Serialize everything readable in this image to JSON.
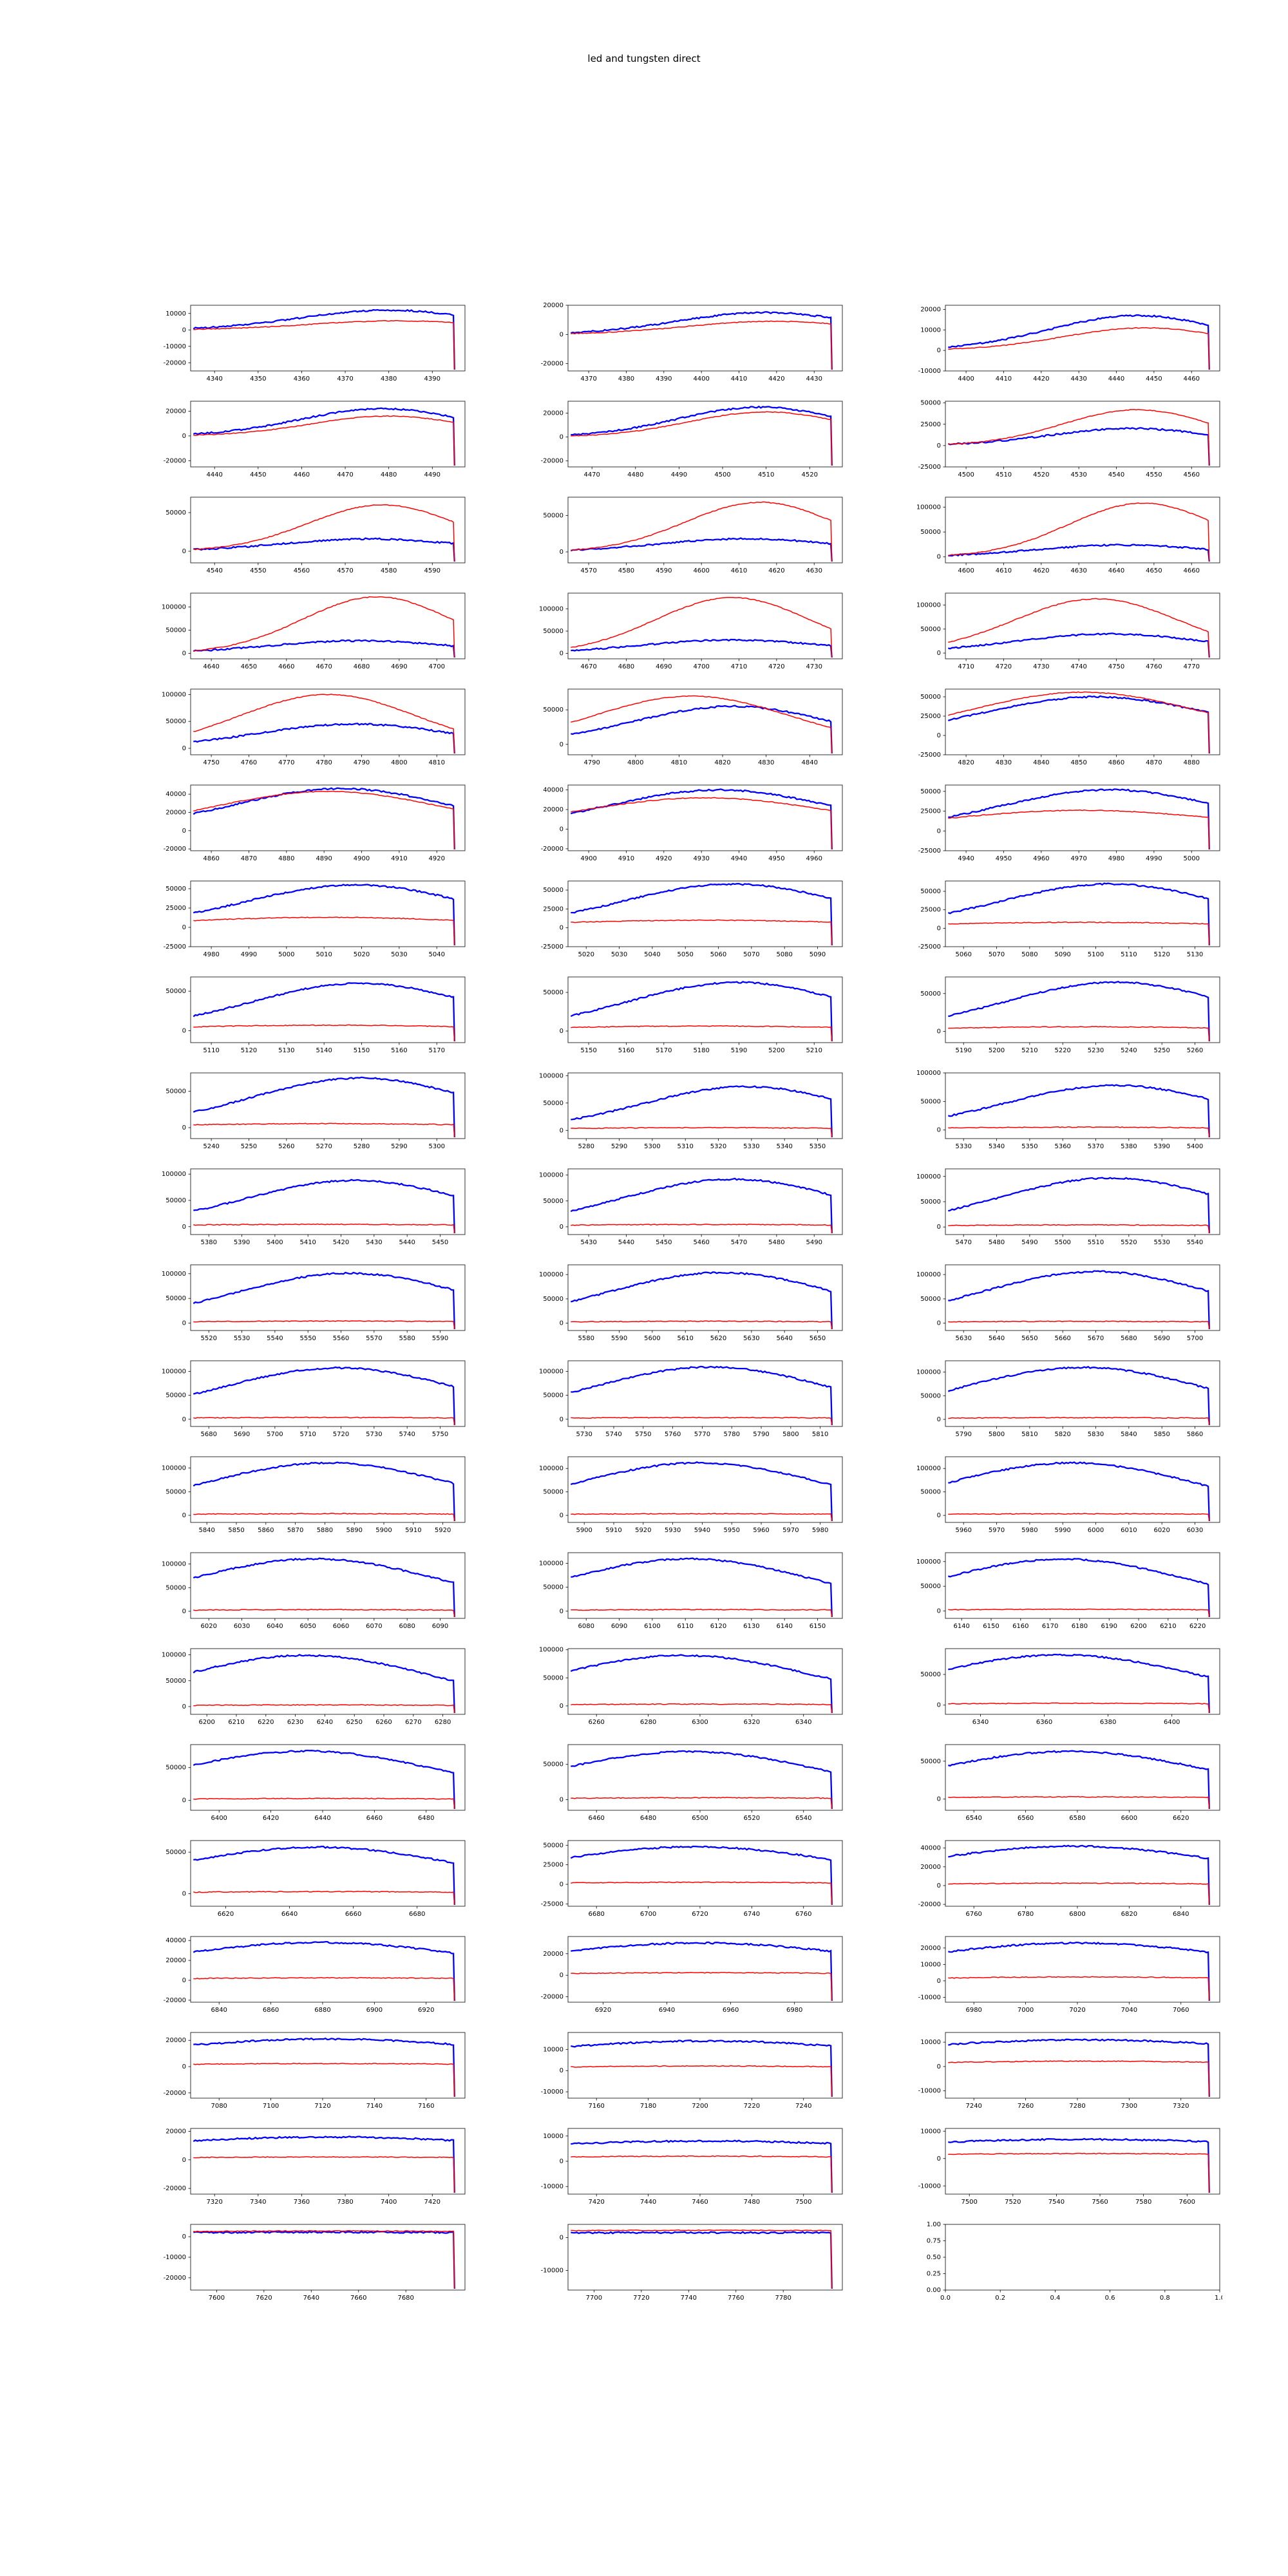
{
  "chart_data": {
    "type": "line",
    "title": "led and tungsten direct",
    "layout": {
      "rows": 21,
      "cols": 3,
      "legend": "none",
      "grid": "off"
    },
    "series_names": [
      "led",
      "tungsten"
    ],
    "colors": {
      "led": "#0000ff",
      "tungsten": "#ff0000",
      "axes": "#000000"
    },
    "subplots": [
      {
        "x0": 4340,
        "x1": 4390,
        "xs": 10,
        "y0": -25000,
        "y1": 15000,
        "ys": 10000,
        "b": [
          12000,
          0.72,
          0.32
        ],
        "r": [
          5500,
          0.75,
          0.32
        ]
      },
      {
        "x0": 4370,
        "x1": 4430,
        "xs": 10,
        "y0": -25000,
        "y1": 20000,
        "ys": 20000,
        "b": [
          15000,
          0.72,
          0.32
        ],
        "r": [
          9000,
          0.75,
          0.32
        ]
      },
      {
        "x0": 4400,
        "x1": 4460,
        "xs": 10,
        "y0": -10000,
        "y1": 22000,
        "ys": 10000,
        "b": [
          17000,
          0.7,
          0.32
        ],
        "r": [
          11000,
          0.73,
          0.3
        ]
      },
      {
        "x0": 4440,
        "x1": 4490,
        "xs": 10,
        "y0": -25000,
        "y1": 28000,
        "ys": 20000,
        "b": [
          22000,
          0.7,
          0.3
        ],
        "r": [
          16000,
          0.72,
          0.28
        ]
      },
      {
        "x0": 4470,
        "x1": 4520,
        "xs": 10,
        "y0": -25000,
        "y1": 30000,
        "ys": 20000,
        "b": [
          25000,
          0.7,
          0.3
        ],
        "r": [
          21000,
          0.72,
          0.28
        ]
      },
      {
        "x0": 4500,
        "x1": 4560,
        "xs": 10,
        "y0": -25000,
        "y1": 52000,
        "ys": 25000,
        "b": [
          20000,
          0.68,
          0.3
        ],
        "r": [
          42000,
          0.7,
          0.27
        ]
      },
      {
        "x0": 4540,
        "x1": 4590,
        "xs": 10,
        "y0": -15000,
        "y1": 70000,
        "ys": 50000,
        "b": [
          16000,
          0.65,
          0.32
        ],
        "r": [
          60000,
          0.7,
          0.27
        ]
      },
      {
        "x0": 4570,
        "x1": 4630,
        "xs": 10,
        "y0": -15000,
        "y1": 75000,
        "ys": 50000,
        "b": [
          18000,
          0.65,
          0.32
        ],
        "r": [
          68000,
          0.7,
          0.27
        ]
      },
      {
        "x0": 4600,
        "x1": 4660,
        "xs": 10,
        "y0": -12000,
        "y1": 120000,
        "ys": 50000,
        "b": [
          24000,
          0.65,
          0.32
        ],
        "r": [
          108000,
          0.72,
          0.27
        ]
      },
      {
        "x0": 4640,
        "x1": 4700,
        "xs": 10,
        "y0": -12000,
        "y1": 130000,
        "ys": 50000,
        "b": [
          27000,
          0.62,
          0.33
        ],
        "r": [
          122000,
          0.68,
          0.27
        ]
      },
      {
        "x0": 4670,
        "x1": 4730,
        "xs": 10,
        "y0": -12000,
        "y1": 135000,
        "ys": 50000,
        "b": [
          30000,
          0.6,
          0.34
        ],
        "r": [
          125000,
          0.6,
          0.28
        ]
      },
      {
        "x0": 4710,
        "x1": 4770,
        "xs": 10,
        "y0": -12000,
        "y1": 125000,
        "ys": 50000,
        "b": [
          40000,
          0.6,
          0.35
        ],
        "r": [
          113000,
          0.55,
          0.3
        ]
      },
      {
        "x0": 4750,
        "x1": 4810,
        "xs": 10,
        "y0": -12000,
        "y1": 110000,
        "ys": 50000,
        "b": [
          45000,
          0.6,
          0.36
        ],
        "r": [
          100000,
          0.5,
          0.32
        ]
      },
      {
        "x0": 4790,
        "x1": 4840,
        "xs": 10,
        "y0": -15000,
        "y1": 80000,
        "ys": 50000,
        "b": [
          55000,
          0.6,
          0.36
        ],
        "r": [
          70000,
          0.45,
          0.35
        ]
      },
      {
        "x0": 4820,
        "x1": 4880,
        "xs": 10,
        "y0": -25000,
        "y1": 60000,
        "ys": 25000,
        "b": [
          50000,
          0.55,
          0.4
        ],
        "r": [
          56000,
          0.5,
          0.4
        ]
      },
      {
        "x0": 4860,
        "x1": 4920,
        "xs": 10,
        "y0": -22000,
        "y1": 50000,
        "ys": 20000,
        "b": [
          46000,
          0.55,
          0.4
        ],
        "r": [
          43000,
          0.5,
          0.42
        ]
      },
      {
        "x0": 4900,
        "x1": 4960,
        "xs": 10,
        "y0": -22000,
        "y1": 45000,
        "ys": 20000,
        "b": [
          40000,
          0.55,
          0.4
        ],
        "r": [
          32000,
          0.5,
          0.45
        ]
      },
      {
        "x0": 4940,
        "x1": 5000,
        "xs": 10,
        "y0": -25000,
        "y1": 58000,
        "ys": 25000,
        "b": [
          52000,
          0.6,
          0.4
        ],
        "r": [
          26000,
          0.5,
          0.5
        ]
      },
      {
        "x0": 4980,
        "x1": 5040,
        "xs": 10,
        "y0": -25000,
        "y1": 60000,
        "ys": 25000,
        "b": [
          55000,
          0.6,
          0.4
        ],
        "r": [
          13000,
          0.5,
          0.55
        ]
      },
      {
        "x0": 5020,
        "x1": 5090,
        "xs": 10,
        "y0": -25000,
        "y1": 62000,
        "ys": 25000,
        "b": [
          58000,
          0.6,
          0.4
        ],
        "r": [
          10000,
          0.5,
          0.6
        ]
      },
      {
        "x0": 5060,
        "x1": 5130,
        "xs": 10,
        "y0": -25000,
        "y1": 64000,
        "ys": 25000,
        "b": [
          60000,
          0.6,
          0.4
        ],
        "r": [
          8000,
          0.5,
          0.6
        ]
      },
      {
        "x0": 5110,
        "x1": 5170,
        "xs": 10,
        "y0": -15000,
        "y1": 68000,
        "ys": 50000,
        "b": [
          60000,
          0.62,
          0.4
        ],
        "r": [
          7000,
          0.5,
          0.6
        ]
      },
      {
        "x0": 5150,
        "x1": 5210,
        "xs": 10,
        "y0": -15000,
        "y1": 70000,
        "ys": 50000,
        "b": [
          63000,
          0.62,
          0.4
        ],
        "r": [
          6500,
          0.5,
          0.6
        ]
      },
      {
        "x0": 5190,
        "x1": 5260,
        "xs": 10,
        "y0": -15000,
        "y1": 72000,
        "ys": 50000,
        "b": [
          65000,
          0.62,
          0.4
        ],
        "r": [
          6000,
          0.5,
          0.6
        ]
      },
      {
        "x0": 5240,
        "x1": 5300,
        "xs": 10,
        "y0": -15000,
        "y1": 75000,
        "ys": 50000,
        "b": [
          68000,
          0.62,
          0.4
        ],
        "r": [
          5500,
          0.5,
          0.6
        ]
      },
      {
        "x0": 5280,
        "x1": 5350,
        "xs": 10,
        "y0": -15000,
        "y1": 105000,
        "ys": 50000,
        "b": [
          80000,
          0.65,
          0.38
        ],
        "r": [
          5000,
          0.5,
          0.6
        ]
      },
      {
        "x0": 5330,
        "x1": 5400,
        "xs": 10,
        "y0": -15000,
        "y1": 100000,
        "ys": 50000,
        "b": [
          78000,
          0.62,
          0.4
        ],
        "r": [
          5000,
          0.5,
          0.6
        ]
      },
      {
        "x0": 5380,
        "x1": 5450,
        "xs": 10,
        "y0": -15000,
        "y1": 110000,
        "ys": 50000,
        "b": [
          88000,
          0.6,
          0.4
        ],
        "r": [
          4500,
          0.5,
          0.6
        ]
      },
      {
        "x0": 5430,
        "x1": 5490,
        "xs": 10,
        "y0": -15000,
        "y1": 112000,
        "ys": 50000,
        "b": [
          92000,
          0.6,
          0.4
        ],
        "r": [
          4500,
          0.5,
          0.6
        ]
      },
      {
        "x0": 5470,
        "x1": 5540,
        "xs": 10,
        "y0": -15000,
        "y1": 115000,
        "ys": 50000,
        "b": [
          97000,
          0.6,
          0.4
        ],
        "r": [
          4000,
          0.5,
          0.6
        ]
      },
      {
        "x0": 5520,
        "x1": 5590,
        "xs": 10,
        "y0": -15000,
        "y1": 118000,
        "ys": 50000,
        "b": [
          101000,
          0.58,
          0.42
        ],
        "r": [
          4000,
          0.5,
          0.6
        ]
      },
      {
        "x0": 5580,
        "x1": 5650,
        "xs": 10,
        "y0": -15000,
        "y1": 120000,
        "ys": 50000,
        "b": [
          104000,
          0.56,
          0.42
        ],
        "r": [
          4000,
          0.5,
          0.6
        ]
      },
      {
        "x0": 5630,
        "x1": 5700,
        "xs": 10,
        "y0": -15000,
        "y1": 120000,
        "ys": 50000,
        "b": [
          106000,
          0.55,
          0.42
        ],
        "r": [
          3800,
          0.5,
          0.6
        ]
      },
      {
        "x0": 5680,
        "x1": 5750,
        "xs": 10,
        "y0": -15000,
        "y1": 122000,
        "ys": 50000,
        "b": [
          107000,
          0.54,
          0.44
        ],
        "r": [
          3800,
          0.5,
          0.6
        ]
      },
      {
        "x0": 5730,
        "x1": 5810,
        "xs": 10,
        "y0": -15000,
        "y1": 122000,
        "ys": 50000,
        "b": [
          109000,
          0.52,
          0.44
        ],
        "r": [
          3600,
          0.5,
          0.6
        ]
      },
      {
        "x0": 5790,
        "x1": 5860,
        "xs": 10,
        "y0": -15000,
        "y1": 124000,
        "ys": 50000,
        "b": [
          110000,
          0.5,
          0.45
        ],
        "r": [
          3600,
          0.5,
          0.6
        ]
      },
      {
        "x0": 5840,
        "x1": 5920,
        "xs": 10,
        "y0": -15000,
        "y1": 124000,
        "ys": 50000,
        "b": [
          111000,
          0.5,
          0.46
        ],
        "r": [
          3500,
          0.5,
          0.6
        ]
      },
      {
        "x0": 5900,
        "x1": 5980,
        "xs": 10,
        "y0": -15000,
        "y1": 125000,
        "ys": 50000,
        "b": [
          112000,
          0.48,
          0.46
        ],
        "r": [
          3500,
          0.5,
          0.6
        ]
      },
      {
        "x0": 5960,
        "x1": 6030,
        "xs": 10,
        "y0": -15000,
        "y1": 125000,
        "ys": 50000,
        "b": [
          112000,
          0.46,
          0.46
        ],
        "r": [
          3400,
          0.5,
          0.6
        ]
      },
      {
        "x0": 6020,
        "x1": 6090,
        "xs": 10,
        "y0": -15000,
        "y1": 124000,
        "ys": 50000,
        "b": [
          111000,
          0.45,
          0.46
        ],
        "r": [
          3400,
          0.5,
          0.6
        ]
      },
      {
        "x0": 6080,
        "x1": 6150,
        "xs": 10,
        "y0": -15000,
        "y1": 122000,
        "ys": 50000,
        "b": [
          109000,
          0.44,
          0.46
        ],
        "r": [
          3300,
          0.5,
          0.6
        ]
      },
      {
        "x0": 6140,
        "x1": 6220,
        "xs": 10,
        "y0": -15000,
        "y1": 118000,
        "ys": 50000,
        "b": [
          105000,
          0.43,
          0.46
        ],
        "r": [
          3300,
          0.5,
          0.6
        ]
      },
      {
        "x0": 6200,
        "x1": 6280,
        "xs": 10,
        "y0": -15000,
        "y1": 112000,
        "ys": 50000,
        "b": [
          99000,
          0.42,
          0.46
        ],
        "r": [
          3200,
          0.5,
          0.6
        ]
      },
      {
        "x0": 6260,
        "x1": 6340,
        "xs": 20,
        "y0": -15000,
        "y1": 102000,
        "ys": 50000,
        "b": [
          90000,
          0.42,
          0.48
        ],
        "r": [
          3200,
          0.5,
          0.6
        ]
      },
      {
        "x0": 6340,
        "x1": 6400,
        "xs": 20,
        "y0": -15000,
        "y1": 92000,
        "ys": 50000,
        "b": [
          82000,
          0.42,
          0.5
        ],
        "r": [
          3000,
          0.5,
          0.6
        ]
      },
      {
        "x0": 6400,
        "x1": 6480,
        "xs": 20,
        "y0": -15000,
        "y1": 85000,
        "ys": 50000,
        "b": [
          75000,
          0.42,
          0.5
        ],
        "r": [
          3000,
          0.5,
          0.6
        ]
      },
      {
        "x0": 6460,
        "x1": 6540,
        "xs": 20,
        "y0": -15000,
        "y1": 78000,
        "ys": 50000,
        "b": [
          68000,
          0.44,
          0.5
        ],
        "r": [
          2800,
          0.5,
          0.6
        ]
      },
      {
        "x0": 6540,
        "x1": 6620,
        "xs": 20,
        "y0": -15000,
        "y1": 72000,
        "ys": 50000,
        "b": [
          63000,
          0.45,
          0.52
        ],
        "r": [
          2800,
          0.5,
          0.6
        ]
      },
      {
        "x0": 6620,
        "x1": 6680,
        "xs": 20,
        "y0": -15000,
        "y1": 64000,
        "ys": 50000,
        "b": [
          56000,
          0.46,
          0.55
        ],
        "r": [
          2600,
          0.5,
          0.6
        ]
      },
      {
        "x0": 6680,
        "x1": 6760,
        "xs": 20,
        "y0": -28000,
        "y1": 56000,
        "ys": 25000,
        "b": [
          48000,
          0.46,
          0.55
        ],
        "r": [
          2600,
          0.5,
          0.6
        ]
      },
      {
        "x0": 6760,
        "x1": 6840,
        "xs": 20,
        "y0": -22000,
        "y1": 48000,
        "ys": 20000,
        "b": [
          42000,
          0.46,
          0.58
        ],
        "r": [
          2500,
          0.5,
          0.6
        ]
      },
      {
        "x0": 6840,
        "x1": 6920,
        "xs": 20,
        "y0": -22000,
        "y1": 44000,
        "ys": 20000,
        "b": [
          38000,
          0.47,
          0.6
        ],
        "r": [
          2500,
          0.5,
          0.6
        ]
      },
      {
        "x0": 6920,
        "x1": 6980,
        "xs": 20,
        "y0": -25000,
        "y1": 36000,
        "ys": 20000,
        "b": [
          30000,
          0.48,
          0.62
        ],
        "r": [
          2400,
          0.5,
          0.6
        ]
      },
      {
        "x0": 6980,
        "x1": 7060,
        "xs": 20,
        "y0": -13000,
        "y1": 27000,
        "ys": 10000,
        "b": [
          23000,
          0.48,
          0.65
        ],
        "r": [
          2400,
          0.5,
          0.6
        ]
      },
      {
        "x0": 7080,
        "x1": 7160,
        "xs": 20,
        "y0": -24000,
        "y1": 26000,
        "ys": 20000,
        "b": [
          21000,
          0.5,
          0.7
        ],
        "r": [
          2300,
          0.5,
          0.7
        ]
      },
      {
        "x0": 7160,
        "x1": 7240,
        "xs": 20,
        "y0": -13000,
        "y1": 18000,
        "ys": 10000,
        "b": [
          14000,
          0.5,
          0.75
        ],
        "r": [
          2200,
          0.5,
          0.7
        ]
      },
      {
        "x0": 7240,
        "x1": 7320,
        "xs": 20,
        "y0": -13000,
        "y1": 14000,
        "ys": 10000,
        "b": [
          11000,
          0.5,
          0.8
        ],
        "r": [
          2200,
          0.5,
          0.7
        ]
      },
      {
        "x0": 7320,
        "x1": 7420,
        "xs": 20,
        "y0": -24000,
        "y1": 22000,
        "ys": 20000,
        "b": [
          16000,
          0.5,
          0.8
        ],
        "r": [
          2000,
          0.5,
          0.8
        ]
      },
      {
        "x0": 7420,
        "x1": 7500,
        "xs": 20,
        "y0": -13000,
        "y1": 13000,
        "ys": 10000,
        "b": [
          8000,
          0.5,
          0.9
        ],
        "r": [
          2000,
          0.5,
          0.9
        ]
      },
      {
        "x0": 7500,
        "x1": 7600,
        "xs": 20,
        "y0": -13000,
        "y1": 11000,
        "ys": 10000,
        "b": [
          7000,
          0.5,
          0.9
        ],
        "r": [
          1800,
          0.5,
          0.9
        ]
      },
      {
        "x0": 7600,
        "x1": 7690,
        "xs": 20,
        "y0": -26000,
        "y1": 6000,
        "ys": 10000,
        "b": [
          2200,
          0.5,
          1.2
        ],
        "r": [
          2800,
          0.5,
          1.2
        ]
      },
      {
        "x0": 7700,
        "x1": 7790,
        "xs": 20,
        "y0": -16000,
        "y1": 4000,
        "ys": 10000,
        "b": [
          1500,
          0.5,
          1.5
        ],
        "r": [
          2200,
          0.5,
          1.5
        ]
      },
      {
        "empty": true,
        "xticks": [
          "0.0",
          "0.2",
          "0.4",
          "0.6",
          "0.8",
          "1.0"
        ],
        "yticks": [
          "0.00",
          "0.25",
          "0.50",
          "0.75",
          "1.00"
        ]
      }
    ]
  }
}
